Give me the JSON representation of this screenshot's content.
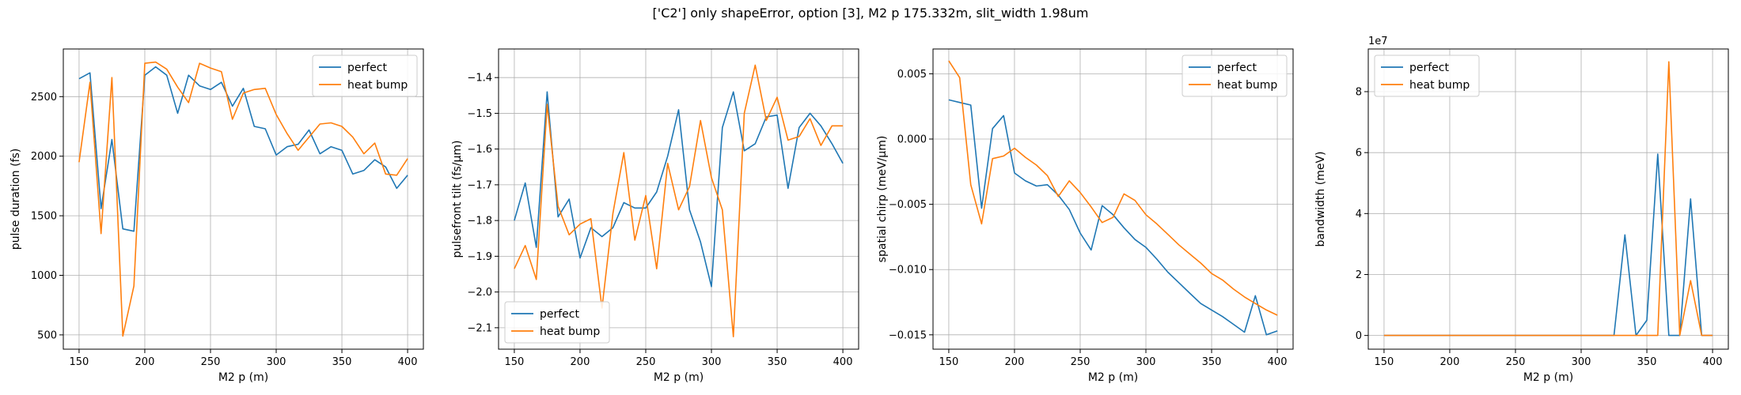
{
  "figure": {
    "title": "['C2'] only shapeError, option [3], M2 p 175.332m, slit_width 1.98um"
  },
  "colors": {
    "perfect": "#1f77b4",
    "heat_bump": "#ff7f0e",
    "grid": "#b0b0b0"
  },
  "chart_data": [
    {
      "type": "line",
      "title": "",
      "xlabel": "M2 p (m)",
      "ylabel": "pulse duration (fs)",
      "xlim": [
        138,
        412
      ],
      "ylim": [
        380,
        2900
      ],
      "xticks": [
        150,
        200,
        250,
        300,
        350,
        400
      ],
      "yticks": [
        500,
        1000,
        1500,
        2000,
        2500
      ],
      "ytick_labels": [
        "500",
        "1000",
        "1500",
        "2000",
        "2500"
      ],
      "offset_text": "",
      "grid": true,
      "legend": "upper right",
      "x": [
        150,
        158.3,
        166.7,
        175,
        183.3,
        191.7,
        200,
        208.3,
        216.7,
        225,
        233.3,
        241.7,
        250,
        258.3,
        266.7,
        275,
        283.3,
        291.7,
        300,
        308.3,
        316.7,
        325,
        333.3,
        341.7,
        350,
        358.3,
        366.7,
        375,
        383.3,
        391.7,
        400
      ],
      "series": [
        {
          "name": "perfect",
          "values": [
            2650,
            2700,
            1560,
            2140,
            1390,
            1370,
            2680,
            2750,
            2680,
            2360,
            2680,
            2590,
            2560,
            2620,
            2420,
            2570,
            2250,
            2230,
            2010,
            2080,
            2100,
            2220,
            2020,
            2080,
            2050,
            1850,
            1880,
            1970,
            1910,
            1730,
            1840
          ]
        },
        {
          "name": "heat bump",
          "values": [
            1950,
            2620,
            1350,
            2660,
            490,
            910,
            2780,
            2790,
            2730,
            2580,
            2450,
            2780,
            2740,
            2710,
            2310,
            2530,
            2560,
            2570,
            2350,
            2190,
            2050,
            2160,
            2270,
            2280,
            2250,
            2160,
            2020,
            2110,
            1850,
            1840,
            1980
          ]
        }
      ]
    },
    {
      "type": "line",
      "title": "",
      "xlabel": "M2 p (m)",
      "ylabel": "pulsefront tilt (fs/μm)",
      "xlim": [
        138,
        412
      ],
      "ylim": [
        -2.16,
        -1.32
      ],
      "xticks": [
        150,
        200,
        250,
        300,
        350,
        400
      ],
      "yticks": [
        -2.1,
        -2.0,
        -1.9,
        -1.8,
        -1.7,
        -1.6,
        -1.5,
        -1.4
      ],
      "ytick_labels": [
        "−2.1",
        "−2.0",
        "−1.9",
        "−1.8",
        "−1.7",
        "−1.6",
        "−1.5",
        "−1.4"
      ],
      "offset_text": "",
      "grid": true,
      "legend": "lower left",
      "x": [
        150,
        158.3,
        166.7,
        175,
        183.3,
        191.7,
        200,
        208.3,
        216.7,
        225,
        233.3,
        241.7,
        250,
        258.3,
        266.7,
        275,
        283.3,
        291.7,
        300,
        308.3,
        316.7,
        325,
        333.3,
        341.7,
        350,
        358.3,
        366.7,
        375,
        383.3,
        391.7,
        400
      ],
      "series": [
        {
          "name": "perfect",
          "values": [
            -1.8,
            -1.695,
            -1.875,
            -1.44,
            -1.79,
            -1.74,
            -1.905,
            -1.82,
            -1.845,
            -1.82,
            -1.75,
            -1.765,
            -1.765,
            -1.72,
            -1.62,
            -1.49,
            -1.77,
            -1.86,
            -1.985,
            -1.54,
            -1.44,
            -1.605,
            -1.585,
            -1.51,
            -1.505,
            -1.71,
            -1.54,
            -1.5,
            -1.535,
            -1.585,
            -1.64
          ]
        },
        {
          "name": "heat bump",
          "values": [
            -1.935,
            -1.87,
            -1.965,
            -1.475,
            -1.76,
            -1.84,
            -1.81,
            -1.795,
            -2.045,
            -1.78,
            -1.61,
            -1.855,
            -1.73,
            -1.935,
            -1.64,
            -1.77,
            -1.705,
            -1.52,
            -1.68,
            -1.77,
            -2.125,
            -1.5,
            -1.365,
            -1.52,
            -1.455,
            -1.575,
            -1.565,
            -1.515,
            -1.59,
            -1.535,
            -1.535
          ]
        }
      ]
    },
    {
      "type": "line",
      "title": "",
      "xlabel": "M2 p (m)",
      "ylabel": "spatial chirp (meV/μm)",
      "xlim": [
        138,
        412
      ],
      "ylim": [
        -0.0161,
        0.0069
      ],
      "xticks": [
        150,
        200,
        250,
        300,
        350,
        400
      ],
      "yticks": [
        0.005,
        0.0,
        -0.005,
        -0.01,
        -0.015
      ],
      "ytick_labels": [
        "0.005",
        "0.000",
        "−0.005",
        "−0.010",
        "−0.015"
      ],
      "offset_text": "",
      "grid": true,
      "legend": "upper right",
      "x": [
        150,
        158.3,
        166.7,
        175,
        183.3,
        191.7,
        200,
        208.3,
        216.7,
        225,
        233.3,
        241.7,
        250,
        258.3,
        266.7,
        275,
        283.3,
        291.7,
        300,
        308.3,
        316.7,
        325,
        333.3,
        341.7,
        350,
        358.3,
        366.7,
        375,
        383.3,
        391.7,
        400
      ],
      "series": [
        {
          "name": "perfect",
          "values": [
            0.003,
            0.0028,
            0.0026,
            -0.0053,
            0.0008,
            0.0018,
            -0.0026,
            -0.0032,
            -0.0036,
            -0.0035,
            -0.0043,
            -0.0054,
            -0.0072,
            -0.0085,
            -0.0051,
            -0.0058,
            -0.0068,
            -0.0077,
            -0.0083,
            -0.0092,
            -0.0102,
            -0.011,
            -0.0118,
            -0.0126,
            -0.0131,
            -0.0136,
            -0.0142,
            -0.0148,
            -0.012,
            -0.015,
            -0.0147
          ]
        },
        {
          "name": "heat bump",
          "values": [
            0.006,
            0.0047,
            -0.0035,
            -0.0065,
            -0.0015,
            -0.0013,
            -0.0007,
            -0.0014,
            -0.002,
            -0.0028,
            -0.0044,
            -0.0032,
            -0.0041,
            -0.0052,
            -0.0064,
            -0.006,
            -0.0042,
            -0.0047,
            -0.0058,
            -0.0065,
            -0.0073,
            -0.0081,
            -0.0088,
            -0.0095,
            -0.0103,
            -0.0108,
            -0.0115,
            -0.0121,
            -0.0126,
            -0.0131,
            -0.0135
          ]
        }
      ]
    },
    {
      "type": "line",
      "title": "",
      "xlabel": "M2 p (m)",
      "ylabel": "bandwidth (meV)",
      "xlim": [
        138,
        412
      ],
      "ylim": [
        -4500000.0,
        94000000.0
      ],
      "xticks": [
        150,
        200,
        250,
        300,
        350,
        400
      ],
      "yticks": [
        0,
        20000000,
        40000000,
        60000000,
        80000000
      ],
      "ytick_labels": [
        "0",
        "2",
        "4",
        "6",
        "8"
      ],
      "offset_text": "1e7",
      "grid": true,
      "legend": "upper left",
      "x": [
        150,
        158.3,
        166.7,
        175,
        183.3,
        191.7,
        200,
        208.3,
        216.7,
        225,
        233.3,
        241.7,
        250,
        258.3,
        266.7,
        275,
        283.3,
        291.7,
        300,
        308.3,
        316.7,
        325,
        333.3,
        341.7,
        350,
        358.3,
        366.7,
        375,
        383.3,
        391.7,
        400
      ],
      "series": [
        {
          "name": "perfect",
          "values": [
            0,
            0,
            0,
            0,
            0,
            0,
            0,
            0,
            0,
            0,
            0,
            0,
            0,
            0,
            0,
            0,
            0,
            0,
            0,
            0,
            0,
            0,
            33000000,
            0,
            5000000,
            59500000,
            0,
            0,
            44800000,
            0,
            0
          ]
        },
        {
          "name": "heat bump",
          "values": [
            0,
            0,
            0,
            0,
            0,
            0,
            0,
            0,
            0,
            0,
            0,
            0,
            0,
            0,
            0,
            0,
            0,
            0,
            0,
            0,
            0,
            0,
            0,
            0,
            0,
            0,
            89800000,
            0,
            18000000,
            0,
            0
          ]
        }
      ]
    }
  ]
}
